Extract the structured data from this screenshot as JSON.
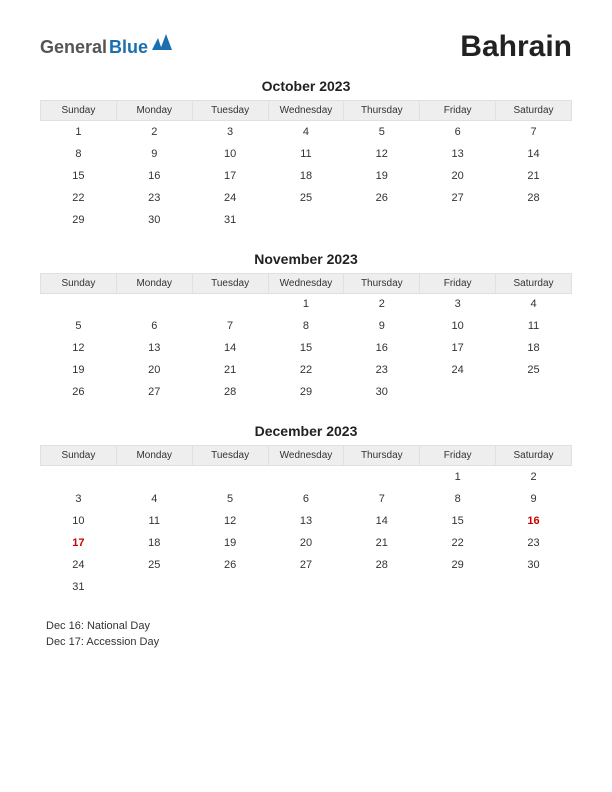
{
  "logo": {
    "general": "General",
    "blue": "Blue",
    "icon_color": "#1a6fb0"
  },
  "country": "Bahrain",
  "weekdays": [
    "Sunday",
    "Monday",
    "Tuesday",
    "Wednesday",
    "Thursday",
    "Friday",
    "Saturday"
  ],
  "header_bg": "#eeeeee",
  "header_border": "#e0e0e0",
  "text_color": "#333333",
  "holiday_color": "#cc0000",
  "months": [
    {
      "title": "October 2023",
      "rows": [
        [
          {
            "d": "1"
          },
          {
            "d": "2"
          },
          {
            "d": "3"
          },
          {
            "d": "4"
          },
          {
            "d": "5"
          },
          {
            "d": "6"
          },
          {
            "d": "7"
          }
        ],
        [
          {
            "d": "8"
          },
          {
            "d": "9"
          },
          {
            "d": "10"
          },
          {
            "d": "11"
          },
          {
            "d": "12"
          },
          {
            "d": "13"
          },
          {
            "d": "14"
          }
        ],
        [
          {
            "d": "15"
          },
          {
            "d": "16"
          },
          {
            "d": "17"
          },
          {
            "d": "18"
          },
          {
            "d": "19"
          },
          {
            "d": "20"
          },
          {
            "d": "21"
          }
        ],
        [
          {
            "d": "22"
          },
          {
            "d": "23"
          },
          {
            "d": "24"
          },
          {
            "d": "25"
          },
          {
            "d": "26"
          },
          {
            "d": "27"
          },
          {
            "d": "28"
          }
        ],
        [
          {
            "d": "29"
          },
          {
            "d": "30"
          },
          {
            "d": "31"
          },
          {
            "d": ""
          },
          {
            "d": ""
          },
          {
            "d": ""
          },
          {
            "d": ""
          }
        ]
      ]
    },
    {
      "title": "November 2023",
      "rows": [
        [
          {
            "d": ""
          },
          {
            "d": ""
          },
          {
            "d": ""
          },
          {
            "d": "1"
          },
          {
            "d": "2"
          },
          {
            "d": "3"
          },
          {
            "d": "4"
          }
        ],
        [
          {
            "d": "5"
          },
          {
            "d": "6"
          },
          {
            "d": "7"
          },
          {
            "d": "8"
          },
          {
            "d": "9"
          },
          {
            "d": "10"
          },
          {
            "d": "11"
          }
        ],
        [
          {
            "d": "12"
          },
          {
            "d": "13"
          },
          {
            "d": "14"
          },
          {
            "d": "15"
          },
          {
            "d": "16"
          },
          {
            "d": "17"
          },
          {
            "d": "18"
          }
        ],
        [
          {
            "d": "19"
          },
          {
            "d": "20"
          },
          {
            "d": "21"
          },
          {
            "d": "22"
          },
          {
            "d": "23"
          },
          {
            "d": "24"
          },
          {
            "d": "25"
          }
        ],
        [
          {
            "d": "26"
          },
          {
            "d": "27"
          },
          {
            "d": "28"
          },
          {
            "d": "29"
          },
          {
            "d": "30"
          },
          {
            "d": ""
          },
          {
            "d": ""
          }
        ]
      ]
    },
    {
      "title": "December 2023",
      "rows": [
        [
          {
            "d": ""
          },
          {
            "d": ""
          },
          {
            "d": ""
          },
          {
            "d": ""
          },
          {
            "d": ""
          },
          {
            "d": "1"
          },
          {
            "d": "2"
          }
        ],
        [
          {
            "d": "3"
          },
          {
            "d": "4"
          },
          {
            "d": "5"
          },
          {
            "d": "6"
          },
          {
            "d": "7"
          },
          {
            "d": "8"
          },
          {
            "d": "9"
          }
        ],
        [
          {
            "d": "10"
          },
          {
            "d": "11"
          },
          {
            "d": "12"
          },
          {
            "d": "13"
          },
          {
            "d": "14"
          },
          {
            "d": "15"
          },
          {
            "d": "16",
            "h": true
          }
        ],
        [
          {
            "d": "17",
            "h": true
          },
          {
            "d": "18"
          },
          {
            "d": "19"
          },
          {
            "d": "20"
          },
          {
            "d": "21"
          },
          {
            "d": "22"
          },
          {
            "d": "23"
          }
        ],
        [
          {
            "d": "24"
          },
          {
            "d": "25"
          },
          {
            "d": "26"
          },
          {
            "d": "27"
          },
          {
            "d": "28"
          },
          {
            "d": "29"
          },
          {
            "d": "30"
          }
        ],
        [
          {
            "d": "31"
          },
          {
            "d": ""
          },
          {
            "d": ""
          },
          {
            "d": ""
          },
          {
            "d": ""
          },
          {
            "d": ""
          },
          {
            "d": ""
          }
        ]
      ]
    }
  ],
  "holiday_list": [
    "Dec 16: National Day",
    "Dec 17: Accession Day"
  ]
}
